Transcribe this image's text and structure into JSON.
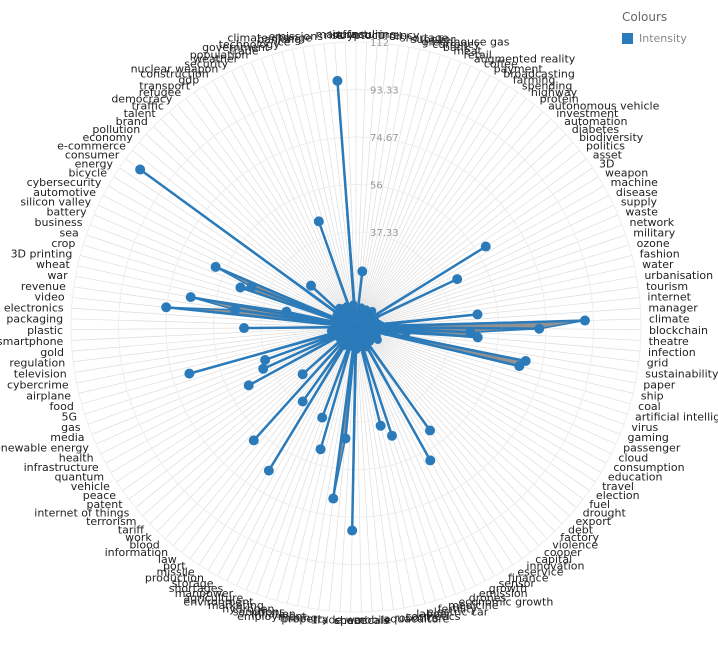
{
  "legend": {
    "title": "Colours",
    "items": [
      {
        "label": "Intensity",
        "color": "#2b7bba"
      }
    ]
  },
  "chart_data": {
    "type": "radar",
    "series": [
      {
        "name": "Intensity",
        "color": "#2b7bba"
      }
    ],
    "rmax": 112,
    "ticks": [
      "112",
      "93.33",
      "74.67",
      "56",
      "37.33"
    ],
    "tick_values": [
      112,
      93.33,
      74.67,
      56,
      37.33
    ],
    "points": [
      {
        "label": "manufacturing",
        "value": 2
      },
      {
        "label": "insulin",
        "value": 5
      },
      {
        "label": "cryptocurrency",
        "value": 3
      },
      {
        "label": "oil",
        "value": 22
      },
      {
        "label": "shortage",
        "value": 3
      },
      {
        "label": "supplier",
        "value": 6
      },
      {
        "label": "greenhouse gas",
        "value": 6
      },
      {
        "label": "currency",
        "value": 8
      },
      {
        "label": "bank",
        "value": 4
      },
      {
        "label": "meat",
        "value": 5
      },
      {
        "label": "retail",
        "value": 6
      },
      {
        "label": "augmented reality",
        "value": 4
      },
      {
        "label": "coffee",
        "value": 6
      },
      {
        "label": "payment",
        "value": 3
      },
      {
        "label": "broadcasting",
        "value": 8
      },
      {
        "label": "farming",
        "value": 6
      },
      {
        "label": "spending",
        "value": 5
      },
      {
        "label": "highway",
        "value": 4
      },
      {
        "label": "protein",
        "value": 4
      },
      {
        "label": "autonomous vehicle",
        "value": 6
      },
      {
        "label": "investment",
        "value": 4
      },
      {
        "label": "automation",
        "value": 9
      },
      {
        "label": "diabetes",
        "value": 5
      },
      {
        "label": "biodiversity",
        "value": 8
      },
      {
        "label": "politics",
        "value": 6
      },
      {
        "label": "asset",
        "value": 5
      },
      {
        "label": "3D",
        "value": 6
      },
      {
        "label": "weapon",
        "value": 60
      },
      {
        "label": "machine",
        "value": 6
      },
      {
        "label": "disease",
        "value": 8
      },
      {
        "label": "supply",
        "value": 44
      },
      {
        "label": "waste",
        "value": 6
      },
      {
        "label": "network",
        "value": 8
      },
      {
        "label": "military",
        "value": 5
      },
      {
        "label": "ozone",
        "value": 6
      },
      {
        "label": "fashion",
        "value": 7
      },
      {
        "label": "water",
        "value": 5
      },
      {
        "label": "urbanisation",
        "value": 8
      },
      {
        "label": "tourism",
        "value": 9
      },
      {
        "label": "internet",
        "value": 48
      },
      {
        "label": "manager",
        "value": 10
      },
      {
        "label": "climate",
        "value": 90
      },
      {
        "label": "blockchain",
        "value": 72
      },
      {
        "label": "theatre",
        "value": 45
      },
      {
        "label": "infection",
        "value": 48
      },
      {
        "label": "grid",
        "value": 20
      },
      {
        "label": "sustainability",
        "value": 12
      },
      {
        "label": "paper",
        "value": 68
      },
      {
        "label": "ship",
        "value": 66
      },
      {
        "label": "coal",
        "value": 8
      },
      {
        "label": "artificial intelligence",
        "value": 7
      },
      {
        "label": "virus",
        "value": 5
      },
      {
        "label": "gaming",
        "value": 6
      },
      {
        "label": "passenger",
        "value": 9
      },
      {
        "label": "cloud",
        "value": 5
      },
      {
        "label": "consumption",
        "value": 6
      },
      {
        "label": "education",
        "value": 10
      },
      {
        "label": "travel",
        "value": 7
      },
      {
        "label": "election",
        "value": 8
      },
      {
        "label": "fuel",
        "value": 6
      },
      {
        "label": "drought",
        "value": 5
      },
      {
        "label": "export",
        "value": 7
      },
      {
        "label": "debt",
        "value": 6
      },
      {
        "label": "factory",
        "value": 8
      },
      {
        "label": "violence",
        "value": 6
      },
      {
        "label": "cooper",
        "value": 5
      },
      {
        "label": "capital",
        "value": 7
      },
      {
        "label": "innovation",
        "value": 50
      },
      {
        "label": "eservice",
        "value": 8
      },
      {
        "label": "finance",
        "value": 6
      },
      {
        "label": "sensor",
        "value": 60
      },
      {
        "label": "growth",
        "value": 9
      },
      {
        "label": "emission",
        "value": 7
      },
      {
        "label": "drones",
        "value": 6
      },
      {
        "label": "economic growth",
        "value": 8
      },
      {
        "label": "medicine",
        "value": 45
      },
      {
        "label": "fertility",
        "value": 6
      },
      {
        "label": "electric car",
        "value": 40
      },
      {
        "label": "labour",
        "value": 5
      },
      {
        "label": "cosmetics",
        "value": 8
      },
      {
        "label": "robotics",
        "value": 6
      },
      {
        "label": "aquaculture",
        "value": 7
      },
      {
        "label": "mobile",
        "value": 5
      },
      {
        "label": "chemicals",
        "value": 9
      },
      {
        "label": "space",
        "value": 80
      },
      {
        "label": "trade war",
        "value": 6
      },
      {
        "label": "property",
        "value": 44
      },
      {
        "label": "mining",
        "value": 68
      },
      {
        "label": "employment",
        "value": 5
      },
      {
        "label": "inflation",
        "value": 8
      },
      {
        "label": "sanctions",
        "value": 6
      },
      {
        "label": "hydrogen",
        "value": 50
      },
      {
        "label": "marketing",
        "value": 7
      },
      {
        "label": "environment",
        "value": 38
      },
      {
        "label": "agriculture",
        "value": 6
      },
      {
        "label": "manpower",
        "value": 8
      },
      {
        "label": "shortages",
        "value": 7
      },
      {
        "label": "storage",
        "value": 5
      },
      {
        "label": "production",
        "value": 66
      },
      {
        "label": "missile",
        "value": 9
      },
      {
        "label": "port",
        "value": 36
      },
      {
        "label": "law",
        "value": 8
      },
      {
        "label": "information",
        "value": 5
      },
      {
        "label": "blood",
        "value": 60
      },
      {
        "label": "work",
        "value": 6
      },
      {
        "label": "tariff",
        "value": 7
      },
      {
        "label": "terrorism",
        "value": 28
      },
      {
        "label": "internet of things",
        "value": 8
      },
      {
        "label": "patent",
        "value": 6
      },
      {
        "label": "peace",
        "value": 5
      },
      {
        "label": "vehicle",
        "value": 7
      },
      {
        "label": "quantum",
        "value": 8
      },
      {
        "label": "infrastructure",
        "value": 48
      },
      {
        "label": "health",
        "value": 6
      },
      {
        "label": "renewable energy",
        "value": 40
      },
      {
        "label": "media",
        "value": 8
      },
      {
        "label": "gas",
        "value": 38
      },
      {
        "label": "5G",
        "value": 7
      },
      {
        "label": "food",
        "value": 68
      },
      {
        "label": "airplane",
        "value": 9
      },
      {
        "label": "cybercrime",
        "value": 6
      },
      {
        "label": "television",
        "value": 10
      },
      {
        "label": "regulation",
        "value": 8
      },
      {
        "label": "gold",
        "value": 7
      },
      {
        "label": "smartphone",
        "value": 6
      },
      {
        "label": "plastic",
        "value": 44
      },
      {
        "label": "packaging",
        "value": 5
      },
      {
        "label": "electronics",
        "value": 8
      },
      {
        "label": "video",
        "value": 75
      },
      {
        "label": "revenue",
        "value": 48
      },
      {
        "label": "war",
        "value": 66
      },
      {
        "label": "wheat",
        "value": 28
      },
      {
        "label": "3D printing",
        "value": 9
      },
      {
        "label": "crop",
        "value": 5
      },
      {
        "label": "sea",
        "value": 48
      },
      {
        "label": "business",
        "value": 44
      },
      {
        "label": "battery",
        "value": 60
      },
      {
        "label": "silicon valley",
        "value": 6
      },
      {
        "label": "automotive",
        "value": 8
      },
      {
        "label": "cybersecurity",
        "value": 7
      },
      {
        "label": "bicycle",
        "value": 9
      },
      {
        "label": "energy",
        "value": 6
      },
      {
        "label": "consumer",
        "value": 105
      },
      {
        "label": "e-commerce",
        "value": 8
      },
      {
        "label": "economy",
        "value": 7
      },
      {
        "label": "pollution",
        "value": 24
      },
      {
        "label": "brand",
        "value": 6
      },
      {
        "label": "talent",
        "value": 8
      },
      {
        "label": "traffic",
        "value": 10
      },
      {
        "label": "democracy",
        "value": 5
      },
      {
        "label": "refugee",
        "value": 7
      },
      {
        "label": "transport",
        "value": 9
      },
      {
        "label": "gdp",
        "value": 6
      },
      {
        "label": "construction",
        "value": 8
      },
      {
        "label": "nuclear weapon",
        "value": 5
      },
      {
        "label": "security",
        "value": 7
      },
      {
        "label": "weather",
        "value": 9
      },
      {
        "label": "population",
        "value": 5
      },
      {
        "label": "trade",
        "value": 44
      },
      {
        "label": "government",
        "value": 8
      },
      {
        "label": "technology",
        "value": 6
      },
      {
        "label": "ice",
        "value": 5
      },
      {
        "label": "banking",
        "value": 7
      },
      {
        "label": "climate change",
        "value": 8
      },
      {
        "label": "emissions",
        "value": 9
      },
      {
        "label": "risk",
        "value": 97
      },
      {
        "label": "infra",
        "value": 6
      }
    ]
  }
}
